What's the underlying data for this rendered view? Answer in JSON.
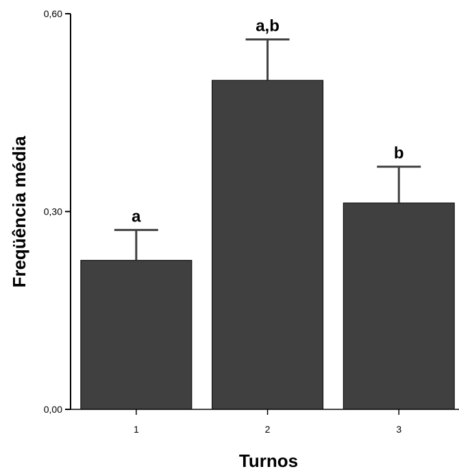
{
  "chart_data": {
    "type": "bar",
    "xlabel": "Turnos",
    "ylabel": "Freqüência média",
    "categories": [
      "1",
      "2",
      "3"
    ],
    "values": [
      0.226,
      0.499,
      0.313
    ],
    "error_upper": [
      0.272,
      0.561,
      0.368
    ],
    "bar_labels": [
      "a",
      "a,b",
      "b"
    ],
    "ylim": [
      0,
      0.6
    ],
    "yticks": [
      0.0,
      0.3,
      0.6
    ],
    "ytick_labels": [
      "0,00",
      "0,30",
      "0,60"
    ],
    "bar_color": "#404040",
    "grid": false
  }
}
